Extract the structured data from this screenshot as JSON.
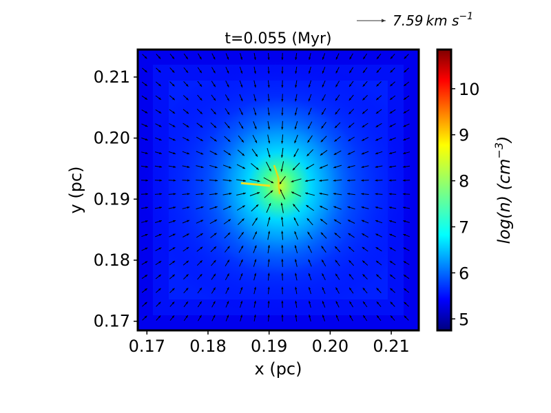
{
  "chart_data": {
    "type": "heatmap",
    "title": "t=0.055 (Myr)",
    "xlabel": "x (pc)",
    "ylabel": "y (pc)",
    "xlim": [
      0.1685,
      0.2145
    ],
    "ylim": [
      0.1685,
      0.2145
    ],
    "xticks": [
      0.17,
      0.18,
      0.19,
      0.2,
      0.21
    ],
    "yticks": [
      0.17,
      0.18,
      0.19,
      0.2,
      0.21
    ],
    "xtick_labels": [
      "0.17",
      "0.18",
      "0.19",
      "0.20",
      "0.21"
    ],
    "ytick_labels": [
      "0.17",
      "0.18",
      "0.19",
      "0.20",
      "0.21"
    ],
    "colormap": "jet",
    "colorbar": {
      "label": "log(n) (cm",
      "label_exp": "−3",
      "label_close": ")",
      "range": [
        4.75,
        10.85
      ],
      "ticks": [
        5,
        6,
        7,
        8,
        9,
        10
      ],
      "tick_labels": [
        "5",
        "6",
        "7",
        "8",
        "9",
        "10"
      ]
    },
    "density_field": {
      "center": [
        0.1915,
        0.1922
      ],
      "peak_log_n": 9.0,
      "background_log_n": 5.0
    },
    "velocity_field": {
      "description_shown": "quiver",
      "reference_key": {
        "value": "7.59",
        "unit": "km s",
        "unit_exp": "−1"
      },
      "flow": "converging toward center"
    }
  }
}
